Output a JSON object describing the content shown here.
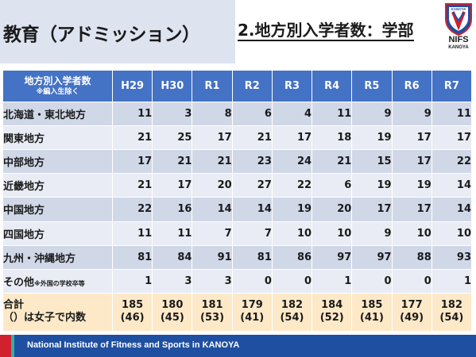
{
  "header": {
    "main_title": "教育（アドミッション）",
    "section_title": "2.地方別入学者数：学部",
    "logo_top": "KANOYA",
    "logo_word": "NIFS",
    "logo_sub": "KANOYA"
  },
  "table": {
    "corner_line1": "地方別入学者数",
    "corner_line2": "※編入生除く",
    "columns": [
      "H29",
      "H30",
      "R1",
      "R2",
      "R3",
      "R4",
      "R5",
      "R6",
      "R7"
    ],
    "rows": [
      {
        "label": "北海道・東北地方",
        "values": [
          "11",
          "3",
          "8",
          "6",
          "4",
          "11",
          "9",
          "9",
          "11"
        ]
      },
      {
        "label": "関東地方",
        "values": [
          "21",
          "25",
          "17",
          "21",
          "17",
          "18",
          "19",
          "17",
          "17"
        ]
      },
      {
        "label": "中部地方",
        "values": [
          "17",
          "21",
          "21",
          "23",
          "24",
          "21",
          "15",
          "17",
          "22"
        ]
      },
      {
        "label": "近畿地方",
        "values": [
          "21",
          "17",
          "20",
          "27",
          "22",
          "6",
          "19",
          "19",
          "14"
        ]
      },
      {
        "label": "中国地方",
        "values": [
          "22",
          "16",
          "14",
          "14",
          "19",
          "20",
          "17",
          "17",
          "14"
        ]
      },
      {
        "label": "四国地方",
        "values": [
          "11",
          "11",
          "7",
          "7",
          "10",
          "10",
          "9",
          "10",
          "10"
        ]
      },
      {
        "label": "九州・沖縄地方",
        "values": [
          "81",
          "84",
          "91",
          "81",
          "86",
          "97",
          "97",
          "88",
          "93"
        ]
      },
      {
        "label": "その他",
        "label_note": "※外国の学校卒等",
        "values": [
          "1",
          "3",
          "3",
          "0",
          "0",
          "1",
          "0",
          "0",
          "1"
        ]
      }
    ],
    "total": {
      "label_line1": "合計",
      "label_line2": "（）は女子で内数",
      "values": [
        "185",
        "180",
        "181",
        "179",
        "182",
        "184",
        "185",
        "177",
        "182"
      ],
      "female": [
        "(46)",
        "(45)",
        "(53)",
        "(41)",
        "(54)",
        "(52)",
        "(41)",
        "(49)",
        "(54)"
      ]
    }
  },
  "footer": {
    "text": "National Institute of Fitness and Sports in KANOYA"
  },
  "colors": {
    "header_bg": "#dde3ef",
    "table_header": "#4472c4",
    "row_light": "#e9ecf4",
    "row_dark": "#d0d8e8",
    "total_row": "#fde9c8",
    "footer_blue": "#1f4fa0",
    "footer_red": "#d2202f"
  }
}
